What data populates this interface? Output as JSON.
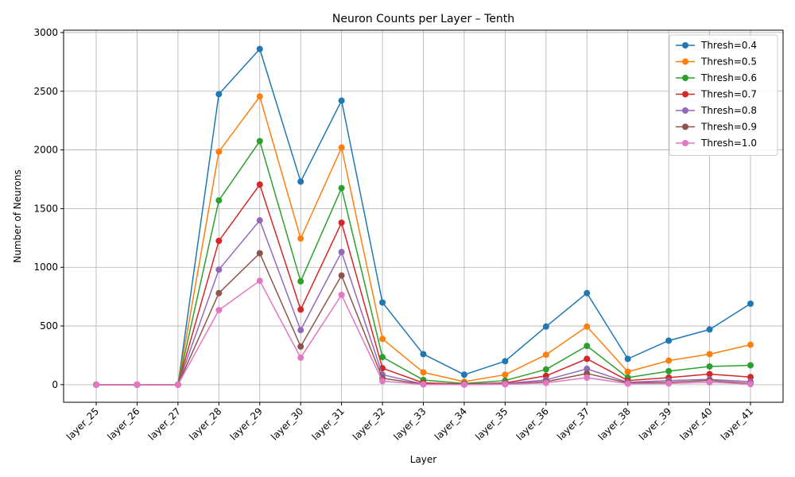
{
  "chart_data": {
    "type": "line",
    "title": "Neuron Counts per Layer – Tenth",
    "xlabel": "Layer",
    "ylabel": "Number of Neurons",
    "ylim": [
      -150,
      3020
    ],
    "yticks": [
      0,
      500,
      1000,
      1500,
      2000,
      2500,
      3000
    ],
    "grid": true,
    "legend_position": "top-right",
    "categories": [
      "layer_25",
      "layer_26",
      "layer_27",
      "layer_28",
      "layer_29",
      "layer_30",
      "layer_31",
      "layer_32",
      "layer_33",
      "layer_34",
      "layer_35",
      "layer_36",
      "layer_37",
      "layer_38",
      "layer_39",
      "layer_40",
      "layer_41"
    ],
    "series": [
      {
        "name": "Thresh=0.4",
        "color": "#1f77b4",
        "values": [
          0,
          0,
          0,
          2475,
          2860,
          1730,
          2420,
          700,
          260,
          85,
          200,
          495,
          780,
          220,
          375,
          470,
          690
        ]
      },
      {
        "name": "Thresh=0.5",
        "color": "#ff7f0e",
        "values": [
          0,
          0,
          0,
          1985,
          2455,
          1245,
          2020,
          390,
          105,
          25,
          85,
          255,
          495,
          110,
          205,
          260,
          340
        ]
      },
      {
        "name": "Thresh=0.6",
        "color": "#2ca02c",
        "values": [
          0,
          0,
          0,
          1570,
          2075,
          880,
          1675,
          235,
          40,
          10,
          35,
          130,
          330,
          60,
          115,
          155,
          165
        ]
      },
      {
        "name": "Thresh=0.7",
        "color": "#d62728",
        "values": [
          0,
          0,
          0,
          1225,
          1705,
          640,
          1380,
          140,
          15,
          5,
          15,
          75,
          220,
          35,
          60,
          90,
          65
        ]
      },
      {
        "name": "Thresh=0.8",
        "color": "#9467bd",
        "values": [
          0,
          0,
          0,
          980,
          1400,
          465,
          1130,
          85,
          5,
          2,
          10,
          40,
          135,
          20,
          35,
          45,
          25
        ]
      },
      {
        "name": "Thresh=0.9",
        "color": "#8c564b",
        "values": [
          0,
          0,
          0,
          780,
          1120,
          325,
          930,
          55,
          3,
          1,
          5,
          25,
          95,
          15,
          20,
          35,
          10
        ]
      },
      {
        "name": "Thresh=1.0",
        "color": "#e377c2",
        "values": [
          0,
          0,
          0,
          635,
          885,
          230,
          765,
          30,
          2,
          0,
          3,
          15,
          60,
          8,
          10,
          20,
          5
        ]
      }
    ]
  }
}
